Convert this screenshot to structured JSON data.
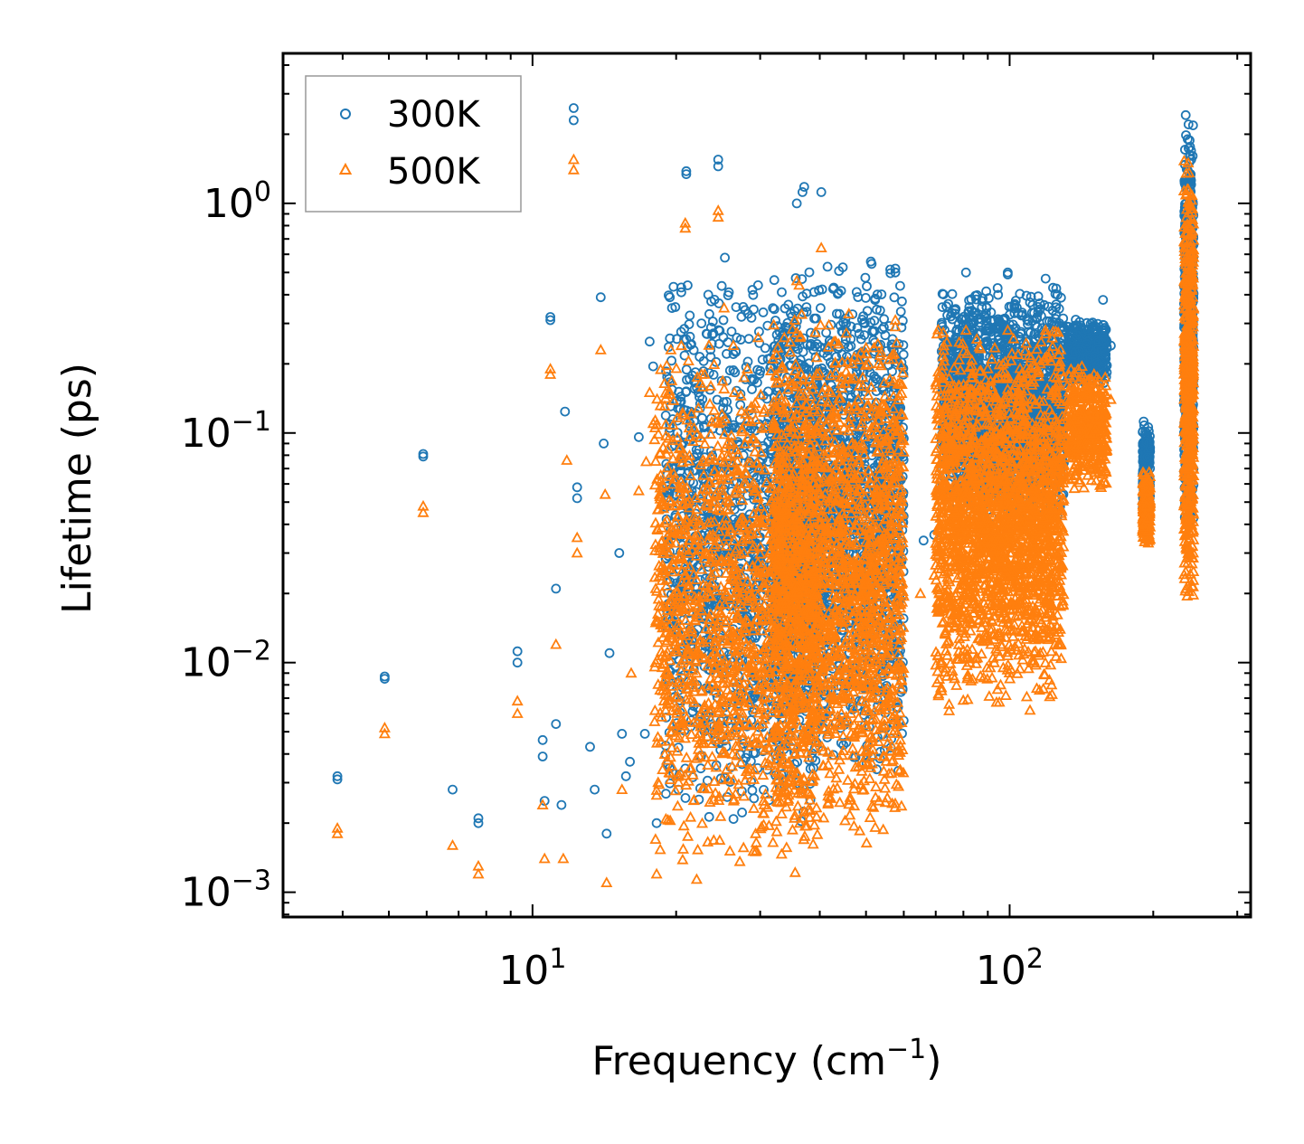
{
  "chart_data": {
    "type": "scatter",
    "title": "",
    "xlabel": "Frequency (cm",
    "xlabel_exp": "−1",
    "xlabel_close": ")",
    "ylabel": "Lifetime (ps)",
    "xscale": "log",
    "yscale": "log",
    "xlim": [
      3.0,
      320
    ],
    "ylim": [
      0.00078,
      4.5
    ],
    "x_ticks": [
      {
        "value": 10,
        "base": "10",
        "exp": "1"
      },
      {
        "value": 100,
        "base": "10",
        "exp": "2"
      }
    ],
    "y_ticks": [
      {
        "value": 0.001,
        "base": "10",
        "exp": "−3"
      },
      {
        "value": 0.01,
        "base": "10",
        "exp": "−2"
      },
      {
        "value": 0.1,
        "base": "10",
        "exp": "−1"
      },
      {
        "value": 1,
        "base": "10",
        "exp": "0"
      }
    ],
    "legend_position": "top-left",
    "colors": {
      "300K": "#1f77b4",
      "500K": "#ff7f0e"
    },
    "series": [
      {
        "name": "300K",
        "marker": "circle",
        "points": [
          [
            3.9,
            0.0031
          ],
          [
            3.9,
            0.0032
          ],
          [
            4.9,
            0.0085
          ],
          [
            4.9,
            0.0087
          ],
          [
            5.9,
            0.079
          ],
          [
            5.9,
            0.081
          ],
          [
            6.8,
            0.0028
          ],
          [
            7.7,
            0.002
          ],
          [
            7.7,
            0.0021
          ],
          [
            9.3,
            0.01
          ],
          [
            9.3,
            0.0112
          ],
          [
            10.5,
            0.0039
          ],
          [
            10.5,
            0.0046
          ],
          [
            10.6,
            0.0025
          ],
          [
            10.9,
            0.31
          ],
          [
            10.9,
            0.32
          ],
          [
            11.2,
            0.0054
          ],
          [
            11.2,
            0.021
          ],
          [
            11.5,
            0.0024
          ],
          [
            11.7,
            0.124
          ],
          [
            12.2,
            2.3
          ],
          [
            12.2,
            2.6
          ],
          [
            12.4,
            0.052
          ],
          [
            12.4,
            0.058
          ],
          [
            13.2,
            0.0043
          ],
          [
            13.5,
            0.0028
          ],
          [
            13.9,
            0.39
          ],
          [
            14.1,
            0.09
          ],
          [
            14.3,
            0.0018
          ],
          [
            14.5,
            0.011
          ],
          [
            15.2,
            0.03
          ],
          [
            15.4,
            0.0049
          ],
          [
            15.7,
            0.0032
          ],
          [
            16.0,
            0.0037
          ],
          [
            16.7,
            0.096
          ],
          [
            17.2,
            0.0049
          ],
          [
            17.6,
            0.25
          ],
          [
            17.9,
            0.195
          ],
          [
            18.2,
            0.002
          ],
          [
            19.4,
            0.39
          ],
          [
            19.6,
            0.35
          ],
          [
            20.5,
            0.41
          ],
          [
            20.5,
            0.43
          ],
          [
            21.0,
            1.38
          ],
          [
            21.0,
            1.34
          ],
          [
            21.5,
            0.0056
          ],
          [
            22.6,
            0.3
          ],
          [
            23.1,
            0.0059
          ],
          [
            24.5,
            1.55
          ],
          [
            24.5,
            1.45
          ],
          [
            25.3,
            0.58
          ],
          [
            25.8,
            0.41
          ],
          [
            26.8,
            0.26
          ],
          [
            28.3,
            0.33
          ],
          [
            28.9,
            0.42
          ],
          [
            29.7,
            0.44
          ],
          [
            31.9,
            0.35
          ],
          [
            33.1,
            0.23
          ],
          [
            33.9,
            0.29
          ],
          [
            35.8,
            1.0
          ],
          [
            36.8,
            1.12
          ],
          [
            37.1,
            1.18
          ],
          [
            40.3,
            1.12
          ],
          [
            48.4,
            0.27
          ],
          [
            53.1,
            0.24
          ],
          [
            57.6,
            0.52
          ],
          [
            57.6,
            0.5
          ],
          [
            66.0,
            0.034
          ],
          [
            69.5,
            0.036
          ],
          [
            81.0,
            0.5
          ],
          [
            99.1,
            0.5
          ],
          [
            99.1,
            0.49
          ],
          [
            119.0,
            0.47
          ],
          [
            126.0,
            0.4
          ],
          [
            146.0,
            0.28
          ],
          [
            157.0,
            0.38
          ],
          [
            163.0,
            0.24
          ]
        ],
        "clusters": [
          {
            "xr": [
              19,
              40
            ],
            "yr": [
              0.0018,
              0.5
            ],
            "n": 1500
          },
          {
            "xr": [
              32,
              60
            ],
            "yr": [
              0.003,
              0.6
            ],
            "n": 1800
          },
          {
            "xr": [
              72,
              130
            ],
            "yr": [
              0.04,
              0.45
            ],
            "n": 2000
          },
          {
            "xr": [
              132,
              160
            ],
            "yr": [
              0.16,
              0.32
            ],
            "n": 400
          },
          {
            "xr": [
              190,
              197
            ],
            "yr": [
              0.038,
              0.12
            ],
            "n": 220
          },
          {
            "xr": [
              232,
              243
            ],
            "yr": [
              0.035,
              2.6
            ],
            "n": 600
          }
        ]
      },
      {
        "name": "500K",
        "marker": "triangle",
        "points": [
          [
            3.9,
            0.0018
          ],
          [
            3.9,
            0.0019
          ],
          [
            4.9,
            0.0049
          ],
          [
            4.9,
            0.0052
          ],
          [
            5.9,
            0.045
          ],
          [
            5.9,
            0.048
          ],
          [
            6.8,
            0.0016
          ],
          [
            7.7,
            0.0012
          ],
          [
            7.7,
            0.0013
          ],
          [
            9.3,
            0.006
          ],
          [
            9.3,
            0.0068
          ],
          [
            10.5,
            0.0024
          ],
          [
            10.6,
            0.0014
          ],
          [
            10.9,
            0.18
          ],
          [
            10.9,
            0.19
          ],
          [
            11.2,
            0.012
          ],
          [
            11.6,
            0.0014
          ],
          [
            11.8,
            0.076
          ],
          [
            12.2,
            1.4
          ],
          [
            12.2,
            1.55
          ],
          [
            12.4,
            0.03
          ],
          [
            12.4,
            0.035
          ],
          [
            13.9,
            0.23
          ],
          [
            14.2,
            0.054
          ],
          [
            14.3,
            0.0011
          ],
          [
            15.4,
            0.0028
          ],
          [
            16.1,
            0.009
          ],
          [
            16.7,
            0.056
          ],
          [
            17.3,
            0.075
          ],
          [
            17.6,
            0.15
          ],
          [
            17.9,
            0.11
          ],
          [
            18.2,
            0.0012
          ],
          [
            19.5,
            0.23
          ],
          [
            20.5,
            0.24
          ],
          [
            20.9,
            0.82
          ],
          [
            20.9,
            0.78
          ],
          [
            22.6,
            0.18
          ],
          [
            24.5,
            0.93
          ],
          [
            24.5,
            0.87
          ],
          [
            25.2,
            0.35
          ],
          [
            26.5,
            0.15
          ],
          [
            28.2,
            0.19
          ],
          [
            29.7,
            0.26
          ],
          [
            31.9,
            0.21
          ],
          [
            33.9,
            0.17
          ],
          [
            35.8,
            0.46
          ],
          [
            36.2,
            0.44
          ],
          [
            40.3,
            0.64
          ],
          [
            48.4,
            0.16
          ],
          [
            57.6,
            0.31
          ],
          [
            57.6,
            0.29
          ],
          [
            65.0,
            0.02
          ],
          [
            69.5,
            0.024
          ],
          [
            81.0,
            0.28
          ],
          [
            99.1,
            0.28
          ],
          [
            119.0,
            0.27
          ],
          [
            146.0,
            0.17
          ],
          [
            163.0,
            0.14
          ]
        ],
        "clusters": [
          {
            "xr": [
              18,
              40
            ],
            "yr": [
              0.0011,
              0.28
            ],
            "n": 1500
          },
          {
            "xr": [
              32,
              60
            ],
            "yr": [
              0.0015,
              0.35
            ],
            "n": 1800
          },
          {
            "xr": [
              70,
              130
            ],
            "yr": [
              0.006,
              0.3
            ],
            "n": 2200
          },
          {
            "xr": [
              132,
              160
            ],
            "yr": [
              0.055,
              0.2
            ],
            "n": 400
          },
          {
            "xr": [
              190,
              197
            ],
            "yr": [
              0.032,
              0.07
            ],
            "n": 220
          },
          {
            "xr": [
              232,
              243
            ],
            "yr": [
              0.016,
              1.6
            ],
            "n": 600
          }
        ]
      }
    ]
  }
}
